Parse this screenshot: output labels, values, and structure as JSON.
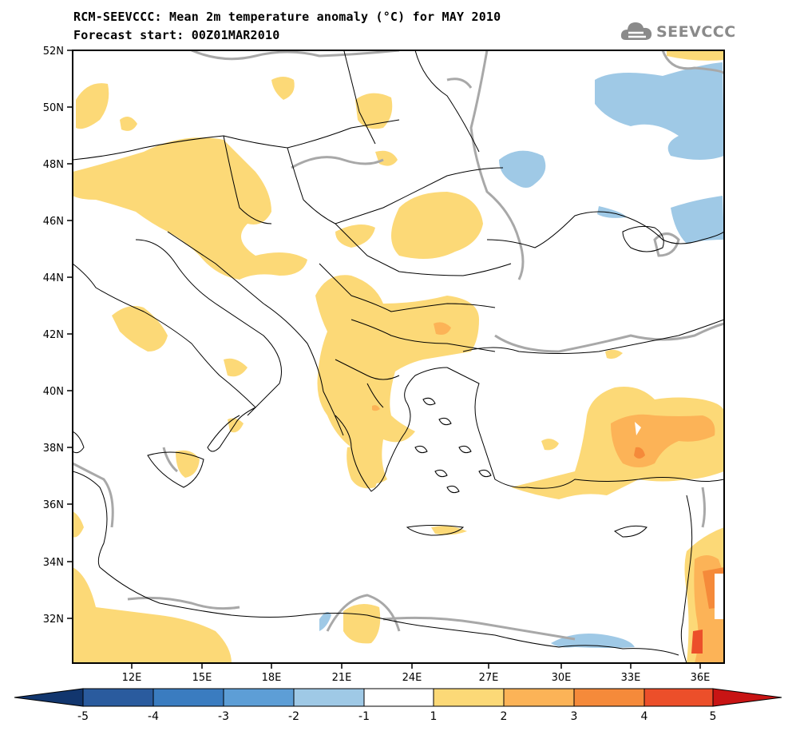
{
  "header": {
    "title": "RCM-SEEVCCC: Mean 2m temperature anomaly (°C) for MAY 2010",
    "subtitle": "Forecast start: 00Z01MAR2010",
    "logo_text": "SEEVCCC",
    "logo_icon": "cloud-icon"
  },
  "map": {
    "lat_labels": [
      "52N",
      "50N",
      "48N",
      "46N",
      "44N",
      "42N",
      "40N",
      "38N",
      "36N",
      "34N",
      "32N"
    ],
    "lon_labels": [
      "12E",
      "15E",
      "18E",
      "21E",
      "24E",
      "27E",
      "30E",
      "33E",
      "36E"
    ]
  },
  "colorbar": {
    "ticks": [
      "-5",
      "-4",
      "-3",
      "-2",
      "-1",
      "1",
      "2",
      "3",
      "4",
      "5"
    ],
    "colors": [
      "#2a5b9e",
      "#3a7cc0",
      "#5d9ed6",
      "#9fc9e6",
      "#ffffff",
      "#fcd977",
      "#fcb357",
      "#f58a3a",
      "#ec4f2a"
    ],
    "end_low_color": "#12366e",
    "end_high_color": "#c81414"
  },
  "colors": {
    "warm_1_2": "#fcd977",
    "warm_2_3": "#fcb357",
    "warm_3_4": "#f58a3a",
    "warm_4_5": "#ec4f2a",
    "cool_1_2": "#9fc9e6",
    "zero_contour": "#a8a8a8"
  }
}
